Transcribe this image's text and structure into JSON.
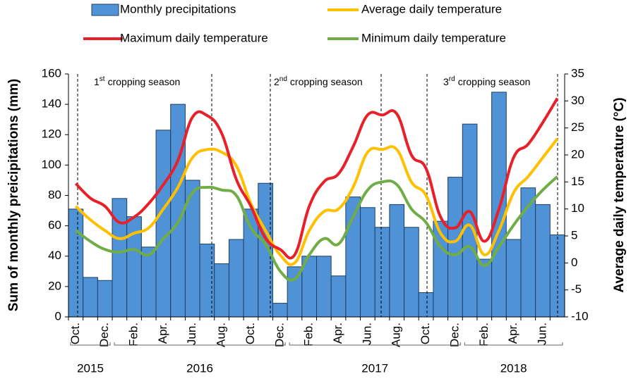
{
  "chart_data": {
    "type": "bar",
    "categories": [
      "Oct.",
      null,
      "Dec.",
      null,
      "Feb.",
      null,
      "Apr.",
      null,
      "Jun.",
      null,
      "Aug.",
      null,
      "Oct.",
      null,
      "Dec.",
      null,
      "Feb.",
      null,
      "Apr.",
      null,
      "Jun.",
      null,
      "Aug.",
      null,
      "Oct.",
      null,
      "Dec.",
      null,
      "Feb.",
      null,
      "Apr.",
      null,
      "Jun.",
      null
    ],
    "year_groups": [
      "2015",
      "2016",
      "2017",
      "2018"
    ],
    "y_label": "Sum of monthly preicipitations (mm)",
    "y2_label": "Average daily temperature (°C)",
    "ylim": [
      0,
      160
    ],
    "yticks": [
      0,
      20,
      40,
      60,
      80,
      100,
      120,
      140,
      160
    ],
    "y2lim": [
      -10,
      35
    ],
    "y2ticks": [
      -10,
      -5,
      0,
      5,
      10,
      15,
      20,
      25,
      30,
      35
    ],
    "annotations": [
      {
        "num": "1",
        "sup": "st",
        "text": "cropping season"
      },
      {
        "num": "2",
        "sup": "nd",
        "text": "cropping season"
      },
      {
        "num": "3",
        "sup": "rd",
        "text": "cropping season"
      }
    ],
    "series": [
      {
        "name": "Monthly precipitations",
        "type": "bar",
        "color": "#4f92d6",
        "values": [
          71,
          26,
          24,
          78,
          66,
          46,
          123,
          140,
          90,
          48,
          35,
          51,
          71,
          88,
          9,
          33,
          40,
          40,
          27,
          79,
          72,
          59,
          74,
          59,
          16,
          63,
          92,
          127,
          38,
          148,
          51,
          85,
          74,
          54
        ]
      },
      {
        "name": "Average daily temperature",
        "type": "line",
        "axis": "y2",
        "color": "#ffc000",
        "values": [
          10.5,
          8,
          6,
          4.5,
          5.5,
          6.5,
          10,
          14,
          19.5,
          21,
          20.5,
          18,
          11,
          6,
          1.5,
          0,
          6,
          9.5,
          10,
          14,
          20.5,
          21,
          21,
          15,
          12.5,
          5.5,
          4,
          7,
          1.5,
          6,
          13,
          16,
          19.5,
          23
        ]
      },
      {
        "name": "Maximum daily temperature",
        "type": "line",
        "axis": "y2",
        "color": "#e8202a",
        "values": [
          14.7,
          12,
          10.5,
          7.5,
          8.5,
          11,
          14.5,
          19,
          27,
          27.3,
          24,
          15.5,
          10.5,
          4.6,
          2.5,
          1.5,
          10.5,
          15,
          16.5,
          21.5,
          27.4,
          27.4,
          27.6,
          20,
          17.5,
          8.5,
          6.5,
          9.5,
          4,
          10,
          19.5,
          22,
          26,
          30.5
        ]
      },
      {
        "name": "Minimum daily temperature",
        "type": "line",
        "axis": "y2",
        "color": "#70ad47",
        "values": [
          6,
          4,
          2.5,
          2,
          2.5,
          1.5,
          4.5,
          7.5,
          13,
          14,
          13.5,
          12.5,
          6.5,
          3.5,
          -1.5,
          -3,
          1.5,
          4.5,
          3.5,
          8.5,
          13.5,
          15,
          14.5,
          10,
          7.5,
          3,
          1.5,
          3,
          -0.5,
          3,
          7,
          10.5,
          13.5,
          16
        ]
      }
    ]
  }
}
